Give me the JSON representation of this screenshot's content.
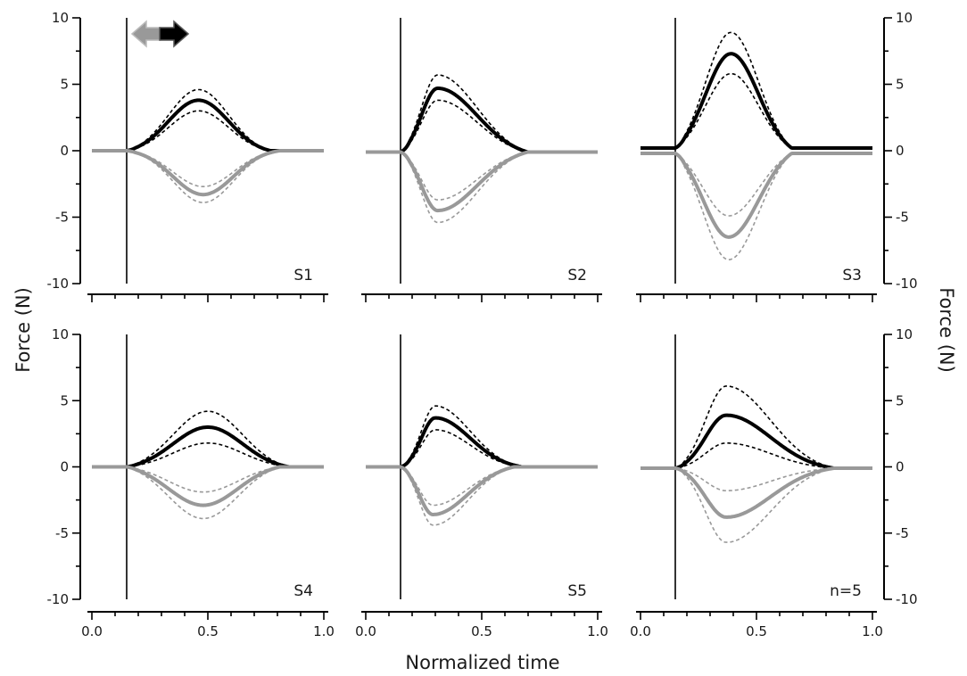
{
  "chart_data": {
    "type": "line",
    "xlabel": "Normalized time",
    "ylabel_left": "Force (N)",
    "ylabel_right": "Force (N)",
    "xlim": [
      0,
      1
    ],
    "ylim": [
      -10,
      10
    ],
    "x_ticks": [
      0.0,
      0.5,
      1.0
    ],
    "x_tick_labels": [
      "0.0",
      "0.5",
      "1.0"
    ],
    "y_ticks": [
      -10,
      -5,
      0,
      5,
      10
    ],
    "y_tick_labels": [
      "-10",
      "-5",
      "0",
      "5",
      "10"
    ],
    "vertical_marker_x": 0.15,
    "grid": false,
    "legend": "arrow icons top-left of first panel: grey arrow pointing left, black arrow pointing right",
    "colors": {
      "rightward": "#000000",
      "leftward": "#999999"
    },
    "panels": [
      {
        "label": "S1",
        "baseline_pos": 0.0,
        "baseline_neg": 0.0,
        "pos": {
          "mean": 3.8,
          "upper": 4.6,
          "lower": 3.0,
          "peak_x": 0.46,
          "rise": 0.13,
          "fall": 0.13
        },
        "neg": {
          "mean": -3.3,
          "upper": -2.7,
          "lower": -3.9,
          "peak_x": 0.48,
          "rise": 0.13,
          "fall": 0.13
        }
      },
      {
        "label": "S2",
        "baseline_pos": -0.1,
        "baseline_neg": -0.1,
        "pos": {
          "mean": 4.7,
          "upper": 5.7,
          "lower": 3.8,
          "peak_x": 0.31,
          "rise": 0.07,
          "fall": 0.17
        },
        "neg": {
          "mean": -4.5,
          "upper": -3.7,
          "lower": -5.4,
          "peak_x": 0.31,
          "rise": 0.07,
          "fall": 0.17
        }
      },
      {
        "label": "S3",
        "baseline_pos": 0.2,
        "baseline_neg": -0.2,
        "pos": {
          "mean": 7.3,
          "upper": 8.9,
          "lower": 5.8,
          "peak_x": 0.39,
          "rise": 0.11,
          "fall": 0.12
        },
        "neg": {
          "mean": -6.5,
          "upper": -4.9,
          "lower": -8.2,
          "peak_x": 0.38,
          "rise": 0.11,
          "fall": 0.13
        }
      },
      {
        "label": "S4",
        "baseline_pos": 0.0,
        "baseline_neg": 0.0,
        "pos": {
          "mean": 3.0,
          "upper": 4.2,
          "lower": 1.8,
          "peak_x": 0.5,
          "rise": 0.15,
          "fall": 0.15
        },
        "neg": {
          "mean": -2.9,
          "upper": -1.9,
          "lower": -3.9,
          "peak_x": 0.48,
          "rise": 0.15,
          "fall": 0.15
        }
      },
      {
        "label": "S5",
        "baseline_pos": 0.0,
        "baseline_neg": 0.0,
        "pos": {
          "mean": 3.7,
          "upper": 4.6,
          "lower": 2.8,
          "peak_x": 0.3,
          "rise": 0.06,
          "fall": 0.15
        },
        "neg": {
          "mean": -3.6,
          "upper": -2.9,
          "lower": -4.4,
          "peak_x": 0.29,
          "rise": 0.06,
          "fall": 0.15
        }
      },
      {
        "label": "n=5",
        "baseline_pos": -0.1,
        "baseline_neg": -0.1,
        "pos": {
          "mean": 3.9,
          "upper": 6.1,
          "lower": 1.8,
          "peak_x": 0.37,
          "rise": 0.09,
          "fall": 0.19
        },
        "neg": {
          "mean": -3.8,
          "upper": -1.8,
          "lower": -5.7,
          "peak_x": 0.37,
          "rise": 0.09,
          "fall": 0.19
        }
      }
    ]
  }
}
